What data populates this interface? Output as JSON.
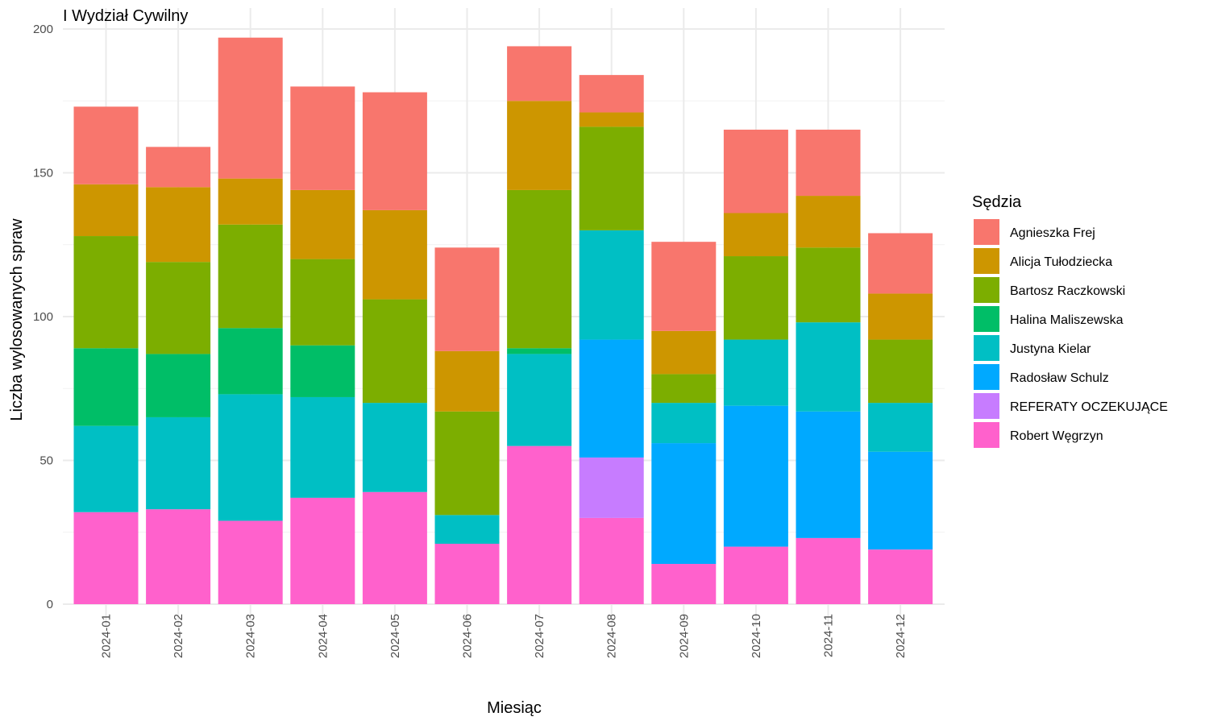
{
  "chart_data": {
    "type": "bar",
    "stacked": true,
    "title": "I Wydział Cywilny",
    "xlabel": "Miesiąc",
    "ylabel": "Liczba wylosowanych spraw",
    "ylim": [
      0,
      200
    ],
    "yticks": [
      0,
      50,
      100,
      150,
      200
    ],
    "grid": true,
    "legend_title": "Sędzia",
    "legend_position": "right",
    "categories": [
      "2024-01",
      "2024-02",
      "2024-03",
      "2024-04",
      "2024-05",
      "2024-06",
      "2024-07",
      "2024-08",
      "2024-09",
      "2024-10",
      "2024-11",
      "2024-12"
    ],
    "series": [
      {
        "name": "Agnieszka Frej",
        "color": "#F8766D",
        "values": [
          27,
          14,
          49,
          36,
          41,
          36,
          19,
          13,
          31,
          29,
          23,
          21
        ]
      },
      {
        "name": "Alicja Tułodziecka",
        "color": "#CD9600",
        "values": [
          18,
          26,
          16,
          24,
          31,
          21,
          31,
          5,
          15,
          15,
          18,
          16
        ]
      },
      {
        "name": "Bartosz Raczkowski",
        "color": "#7CAE00",
        "values": [
          39,
          32,
          36,
          30,
          36,
          36,
          55,
          36,
          10,
          29,
          26,
          22
        ]
      },
      {
        "name": "Halina Maliszewska",
        "color": "#00BE67",
        "values": [
          27,
          22,
          23,
          18,
          0,
          0,
          2,
          0,
          0,
          0,
          0,
          0
        ]
      },
      {
        "name": "Justyna Kielar",
        "color": "#00BFC4",
        "values": [
          30,
          32,
          44,
          35,
          31,
          10,
          32,
          38,
          14,
          23,
          31,
          17
        ]
      },
      {
        "name": "Radosław Schulz",
        "color": "#00A9FF",
        "values": [
          0,
          0,
          0,
          0,
          0,
          0,
          0,
          41,
          42,
          49,
          44,
          34
        ]
      },
      {
        "name": "REFERATY OCZEKUJĄCE",
        "color": "#C77CFF",
        "values": [
          0,
          0,
          0,
          0,
          0,
          0,
          0,
          21,
          0,
          0,
          0,
          0
        ]
      },
      {
        "name": "Robert Węgrzyn",
        "color": "#FF61CC",
        "values": [
          32,
          33,
          29,
          37,
          39,
          21,
          55,
          30,
          14,
          20,
          23,
          19
        ]
      }
    ]
  }
}
